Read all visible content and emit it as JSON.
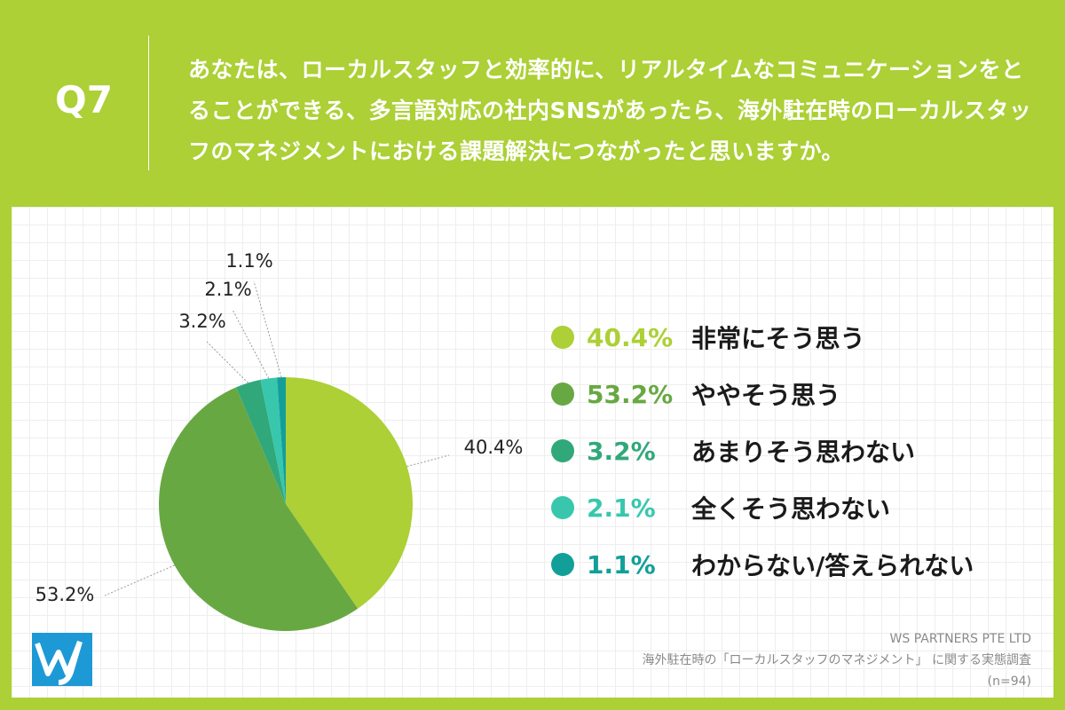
{
  "header": {
    "question_number": "Q7",
    "question_text": "あなたは、ローカルスタッフと効率的に、リアルタイムなコミュニケーションをとることができる、多言語対応の社内SNSがあったら、海外駐在時のローカルスタッフのマネジメントにおける課題解決につながったと思いますか。"
  },
  "chart_data": {
    "type": "pie",
    "title": "",
    "categories": [
      "非常にそう思う",
      "ややそう思う",
      "あまりそう思わない",
      "全くそう思わない",
      "わからない/答えられない"
    ],
    "values": [
      40.4,
      53.2,
      3.2,
      2.1,
      1.1
    ],
    "value_labels": [
      "40.4%",
      "53.2%",
      "3.2%",
      "2.1%",
      "1.1%"
    ],
    "colors": [
      "#acd035",
      "#68a843",
      "#31a87a",
      "#38c7ad",
      "#139f99"
    ],
    "start": "12 o'clock",
    "direction": "clockwise",
    "legend_placement": "right"
  },
  "footer": {
    "company": "WS PARTNERS PTE LTD",
    "survey": "海外駐在時の「ローカルスタッフのマネジメント」 に関する実態調査",
    "sample": "(n=94)"
  }
}
